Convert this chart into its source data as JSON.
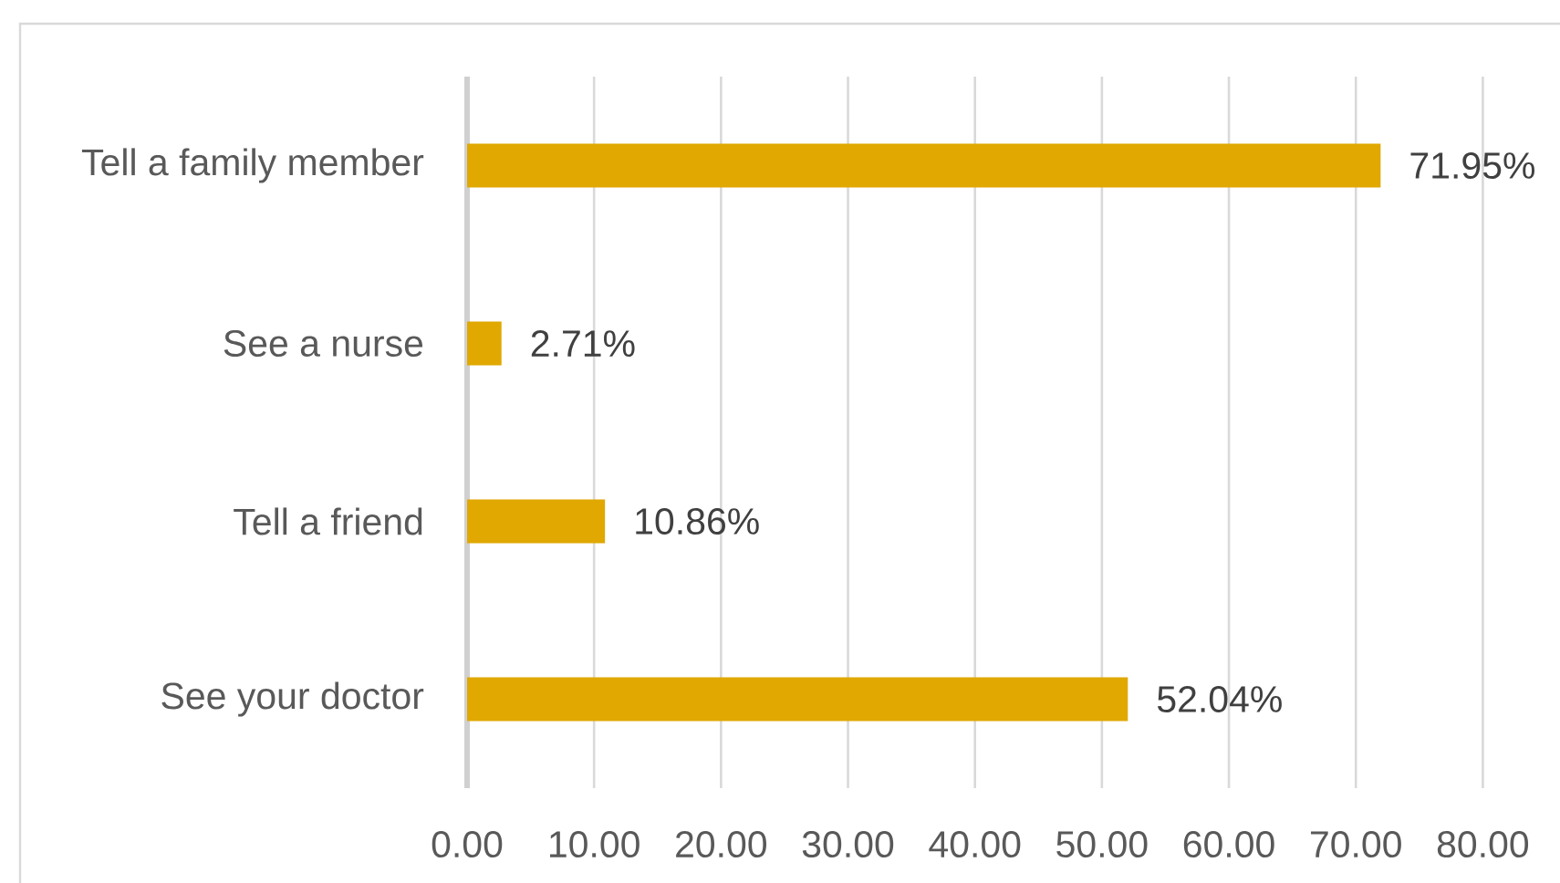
{
  "chart_data": {
    "type": "bar",
    "orientation": "horizontal",
    "categories": [
      "Tell a family member",
      "See a nurse",
      "Tell a friend",
      "See your doctor"
    ],
    "values": [
      71.95,
      2.71,
      10.86,
      52.04
    ],
    "value_labels": [
      "71.95%",
      "2.71%",
      "10.86%",
      "52.04%"
    ],
    "color": "#e0a800",
    "xlim": [
      0,
      80
    ],
    "xticks": [
      {
        "value": 0,
        "label": "0.00"
      },
      {
        "value": 10,
        "label": "10.00"
      },
      {
        "value": 20,
        "label": "20.00"
      },
      {
        "value": 30,
        "label": "30.00"
      },
      {
        "value": 40,
        "label": "40.00"
      },
      {
        "value": 50,
        "label": "50.00"
      },
      {
        "value": 60,
        "label": "60.00"
      },
      {
        "value": 70,
        "label": "70.00"
      },
      {
        "value": 80,
        "label": "80.00"
      }
    ],
    "grid": "x"
  }
}
